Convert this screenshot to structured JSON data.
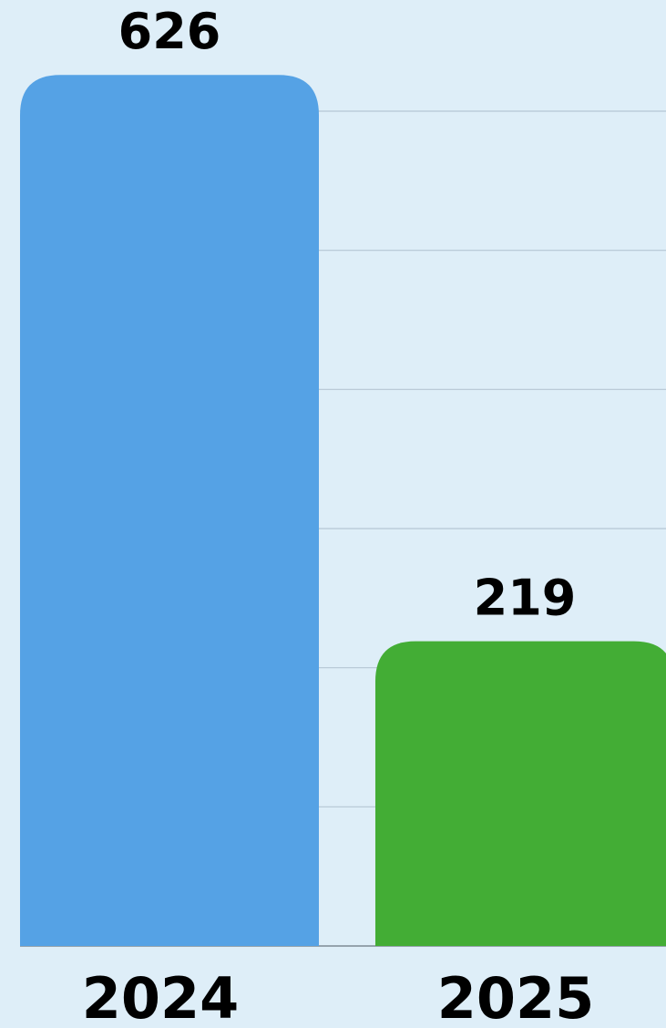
{
  "chart_data": {
    "type": "bar",
    "categories": [
      "2024",
      "2025"
    ],
    "values": [
      626,
      219
    ],
    "colors": [
      "#55a2e5",
      "#43ad35"
    ],
    "ylim": [
      0,
      600
    ],
    "yticks": [
      0,
      100,
      200,
      300,
      400,
      500,
      600
    ],
    "grid": true
  }
}
